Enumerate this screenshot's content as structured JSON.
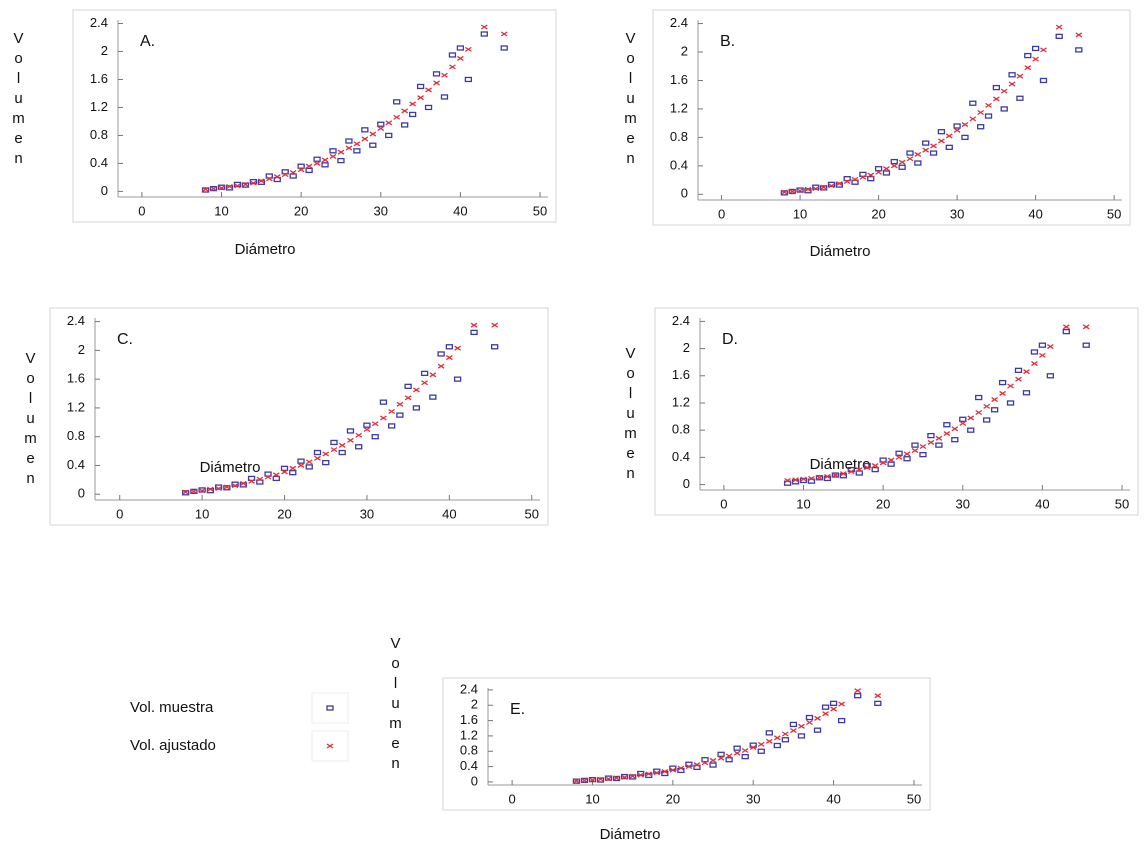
{
  "chart_data": [
    {
      "type": "scatter",
      "title": "A.",
      "x_label": "Diámetro",
      "y_label": "Volumen",
      "x": [
        8,
        9,
        10,
        11,
        12,
        13,
        14,
        15,
        16,
        17,
        18,
        19,
        20,
        21,
        22,
        23,
        24,
        25,
        26,
        27,
        28,
        29,
        30,
        31,
        32,
        33,
        34,
        35,
        36,
        37,
        38,
        39,
        40,
        41,
        43,
        45.5
      ],
      "series": [
        {
          "color": "#3a3aa8",
          "marker": "square",
          "values": [
            0.02,
            0.04,
            0.06,
            0.05,
            0.1,
            0.09,
            0.14,
            0.13,
            0.22,
            0.17,
            0.28,
            0.22,
            0.36,
            0.3,
            0.46,
            0.38,
            0.58,
            0.44,
            0.72,
            0.58,
            0.88,
            0.66,
            0.96,
            0.8,
            1.28,
            0.95,
            1.1,
            1.5,
            1.2,
            1.68,
            1.35,
            1.95,
            2.05,
            1.6,
            2.25,
            2.05
          ]
        },
        {
          "color": "#e0303a",
          "marker": "cross",
          "values": [
            0.03,
            0.04,
            0.05,
            0.07,
            0.08,
            0.1,
            0.12,
            0.15,
            0.18,
            0.21,
            0.24,
            0.27,
            0.31,
            0.36,
            0.4,
            0.45,
            0.5,
            0.56,
            0.62,
            0.68,
            0.75,
            0.82,
            0.9,
            0.98,
            1.06,
            1.15,
            1.25,
            1.34,
            1.45,
            1.55,
            1.66,
            1.78,
            1.9,
            2.03,
            2.35,
            2.25
          ]
        }
      ],
      "xlim": [
        -3,
        51
      ],
      "ylim": [
        -0.08,
        2.45
      ],
      "xticks": [
        0,
        10,
        20,
        30,
        40,
        50
      ],
      "yticks": [
        0,
        0.4,
        0.8,
        1.2,
        1.6,
        2,
        2.4
      ]
    },
    {
      "type": "scatter",
      "title": "B.",
      "x_label": "Diámetro",
      "y_label": "Volumen",
      "x": [
        8,
        9,
        10,
        11,
        12,
        13,
        14,
        15,
        16,
        17,
        18,
        19,
        20,
        21,
        22,
        23,
        24,
        25,
        26,
        27,
        28,
        29,
        30,
        31,
        32,
        33,
        34,
        35,
        36,
        37,
        38,
        39,
        40,
        41,
        43,
        45.5
      ],
      "series": [
        {
          "color": "#3a3aa8",
          "marker": "square",
          "values": [
            0.02,
            0.04,
            0.06,
            0.05,
            0.1,
            0.09,
            0.14,
            0.13,
            0.22,
            0.17,
            0.28,
            0.22,
            0.36,
            0.3,
            0.46,
            0.38,
            0.58,
            0.44,
            0.72,
            0.58,
            0.88,
            0.66,
            0.96,
            0.8,
            1.28,
            0.95,
            1.1,
            1.5,
            1.2,
            1.68,
            1.35,
            1.95,
            2.05,
            1.6,
            2.22,
            2.03
          ]
        },
        {
          "color": "#e0303a",
          "marker": "cross",
          "values": [
            0.03,
            0.04,
            0.05,
            0.07,
            0.08,
            0.1,
            0.12,
            0.15,
            0.18,
            0.21,
            0.24,
            0.27,
            0.31,
            0.36,
            0.4,
            0.45,
            0.5,
            0.56,
            0.62,
            0.68,
            0.75,
            0.82,
            0.9,
            0.98,
            1.06,
            1.15,
            1.25,
            1.34,
            1.45,
            1.55,
            1.66,
            1.78,
            1.9,
            2.03,
            2.35,
            2.24
          ]
        }
      ],
      "xlim": [
        -3,
        51
      ],
      "ylim": [
        -0.08,
        2.45
      ],
      "xticks": [
        0,
        10,
        20,
        30,
        40,
        50
      ],
      "yticks": [
        0,
        0.4,
        0.8,
        1.2,
        1.6,
        2,
        2.4
      ]
    },
    {
      "type": "scatter",
      "title": "C.",
      "x_label": "Diámetro",
      "y_label": "Volumen",
      "x": [
        8,
        9,
        10,
        11,
        12,
        13,
        14,
        15,
        16,
        17,
        18,
        19,
        20,
        21,
        22,
        23,
        24,
        25,
        26,
        27,
        28,
        29,
        30,
        31,
        32,
        33,
        34,
        35,
        36,
        37,
        38,
        39,
        40,
        41,
        43,
        45.5
      ],
      "series": [
        {
          "color": "#3a3aa8",
          "marker": "square",
          "values": [
            0.02,
            0.04,
            0.06,
            0.05,
            0.1,
            0.09,
            0.14,
            0.13,
            0.22,
            0.17,
            0.28,
            0.22,
            0.36,
            0.3,
            0.46,
            0.38,
            0.58,
            0.44,
            0.72,
            0.58,
            0.88,
            0.66,
            0.96,
            0.8,
            1.28,
            0.95,
            1.1,
            1.5,
            1.2,
            1.68,
            1.35,
            1.95,
            2.05,
            1.6,
            2.25,
            2.05
          ]
        },
        {
          "color": "#e0303a",
          "marker": "cross",
          "values": [
            0.03,
            0.04,
            0.05,
            0.07,
            0.08,
            0.1,
            0.12,
            0.15,
            0.18,
            0.21,
            0.24,
            0.27,
            0.31,
            0.36,
            0.4,
            0.45,
            0.5,
            0.56,
            0.62,
            0.68,
            0.75,
            0.82,
            0.9,
            0.98,
            1.06,
            1.15,
            1.25,
            1.34,
            1.45,
            1.55,
            1.66,
            1.78,
            1.9,
            2.03,
            2.35,
            2.35
          ]
        }
      ],
      "xlim": [
        -3,
        51
      ],
      "ylim": [
        -0.08,
        2.45
      ],
      "xticks": [
        0,
        10,
        20,
        30,
        40,
        50
      ],
      "yticks": [
        0,
        0.4,
        0.8,
        1.2,
        1.6,
        2,
        2.4
      ]
    },
    {
      "type": "scatter",
      "title": "D.",
      "x_label": "Diámetro",
      "y_label": "Volumen",
      "x": [
        8,
        9,
        10,
        11,
        12,
        13,
        14,
        15,
        16,
        17,
        18,
        19,
        20,
        21,
        22,
        23,
        24,
        25,
        26,
        27,
        28,
        29,
        30,
        31,
        32,
        33,
        34,
        35,
        36,
        37,
        38,
        39,
        40,
        41,
        43,
        45.5
      ],
      "series": [
        {
          "color": "#3a3aa8",
          "marker": "square",
          "values": [
            0.02,
            0.04,
            0.06,
            0.05,
            0.1,
            0.09,
            0.14,
            0.13,
            0.22,
            0.17,
            0.28,
            0.22,
            0.36,
            0.3,
            0.46,
            0.38,
            0.58,
            0.44,
            0.72,
            0.58,
            0.88,
            0.66,
            0.96,
            0.8,
            1.28,
            0.95,
            1.1,
            1.5,
            1.2,
            1.68,
            1.35,
            1.95,
            2.05,
            1.6,
            2.25,
            2.05
          ]
        },
        {
          "color": "#e0303a",
          "marker": "cross",
          "values": [
            0.06,
            0.07,
            0.08,
            0.09,
            0.1,
            0.12,
            0.14,
            0.16,
            0.19,
            0.22,
            0.25,
            0.28,
            0.32,
            0.36,
            0.4,
            0.45,
            0.5,
            0.56,
            0.62,
            0.68,
            0.75,
            0.82,
            0.9,
            0.98,
            1.06,
            1.15,
            1.25,
            1.34,
            1.45,
            1.55,
            1.66,
            1.78,
            1.9,
            2.03,
            2.32,
            2.32
          ]
        }
      ],
      "xlim": [
        -3,
        51
      ],
      "ylim": [
        -0.08,
        2.45
      ],
      "xticks": [
        0,
        10,
        20,
        30,
        40,
        50
      ],
      "yticks": [
        0,
        0.4,
        0.8,
        1.2,
        1.6,
        2,
        2.4
      ]
    },
    {
      "type": "scatter",
      "title": "E.",
      "x_label": "Diámetro",
      "y_label": "Volumen",
      "x": [
        8,
        9,
        10,
        11,
        12,
        13,
        14,
        15,
        16,
        17,
        18,
        19,
        20,
        21,
        22,
        23,
        24,
        25,
        26,
        27,
        28,
        29,
        30,
        31,
        32,
        33,
        34,
        35,
        36,
        37,
        38,
        39,
        40,
        41,
        43,
        45.5
      ],
      "series": [
        {
          "name": "Vol. muestra",
          "color": "#3a3aa8",
          "marker": "square",
          "values": [
            0.02,
            0.04,
            0.06,
            0.05,
            0.1,
            0.09,
            0.14,
            0.13,
            0.22,
            0.17,
            0.28,
            0.22,
            0.36,
            0.3,
            0.46,
            0.38,
            0.58,
            0.44,
            0.72,
            0.58,
            0.88,
            0.66,
            0.96,
            0.8,
            1.28,
            0.95,
            1.1,
            1.5,
            1.2,
            1.68,
            1.35,
            1.95,
            2.05,
            1.6,
            2.25,
            2.05
          ]
        },
        {
          "name": "Vol. ajustado",
          "color": "#e0303a",
          "marker": "cross",
          "values": [
            0.03,
            0.04,
            0.05,
            0.07,
            0.08,
            0.1,
            0.12,
            0.15,
            0.18,
            0.21,
            0.24,
            0.27,
            0.31,
            0.36,
            0.4,
            0.45,
            0.5,
            0.56,
            0.62,
            0.68,
            0.75,
            0.82,
            0.9,
            0.98,
            1.06,
            1.15,
            1.25,
            1.34,
            1.45,
            1.55,
            1.66,
            1.78,
            1.9,
            2.03,
            2.38,
            2.25
          ]
        }
      ],
      "xlim": [
        -3,
        51
      ],
      "ylim": [
        -0.08,
        2.45
      ],
      "xticks": [
        0,
        10,
        20,
        30,
        40,
        50
      ],
      "yticks": [
        0,
        0.4,
        0.8,
        1.2,
        1.6,
        2,
        2.4
      ],
      "legend": "left"
    }
  ]
}
